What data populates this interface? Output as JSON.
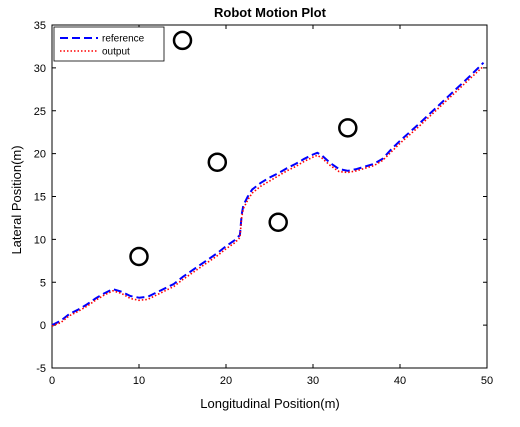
{
  "chart_data": {
    "type": "line",
    "title": "Robot Motion Plot",
    "xlabel": "Longitudinal Position(m)",
    "ylabel": "Lateral Position(m)",
    "xlim": [
      0,
      50
    ],
    "ylim": [
      -5,
      35
    ],
    "xticks": [
      0,
      10,
      20,
      30,
      40,
      50
    ],
    "yticks": [
      -5,
      0,
      5,
      10,
      15,
      20,
      25,
      30,
      35
    ],
    "grid": false,
    "legend_position": "top-left",
    "series": [
      {
        "name": "reference",
        "color": "#0000ff",
        "style": "dashed",
        "x": [
          0,
          1,
          2,
          3,
          4,
          5,
          6,
          7,
          8,
          9,
          10,
          11,
          12,
          13,
          14,
          15,
          16,
          17,
          18,
          19,
          20,
          21,
          21.6,
          21.8,
          22,
          22.5,
          23,
          24,
          25,
          26,
          27,
          28,
          29,
          30,
          30.5,
          31,
          32,
          33,
          34,
          35,
          36,
          37,
          38,
          39,
          40,
          42,
          44,
          46,
          48,
          49.6
        ],
        "y": [
          0,
          0.5,
          1.3,
          1.8,
          2.4,
          3.1,
          3.7,
          4.2,
          3.9,
          3.4,
          3.2,
          3.3,
          3.8,
          4.3,
          4.8,
          5.6,
          6.3,
          7.0,
          7.7,
          8.4,
          9.2,
          9.9,
          10.5,
          12.9,
          14.0,
          15.0,
          15.8,
          16.6,
          17.2,
          17.7,
          18.3,
          18.8,
          19.4,
          19.9,
          20.1,
          19.8,
          18.9,
          18.2,
          18.0,
          18.2,
          18.5,
          18.8,
          19.4,
          20.5,
          21.5,
          23.3,
          25.2,
          27.1,
          29.0,
          30.6
        ]
      },
      {
        "name": "output",
        "color": "#ff0000",
        "style": "dotted",
        "x": [
          0,
          1,
          2,
          3,
          4,
          5,
          6,
          7,
          8,
          9,
          10,
          11,
          12,
          13,
          14,
          15,
          16,
          17,
          18,
          19,
          20,
          21,
          21.6,
          21.8,
          22,
          22.5,
          23,
          24,
          25,
          26,
          27,
          28,
          29,
          30,
          30.5,
          31,
          32,
          33,
          34,
          35,
          36,
          37,
          38,
          39,
          40,
          42,
          44,
          46,
          48,
          49.6
        ],
        "y": [
          -0.1,
          0.3,
          1.1,
          1.6,
          2.2,
          2.9,
          3.5,
          4.0,
          3.7,
          3.1,
          2.9,
          3.0,
          3.5,
          4.0,
          4.5,
          5.3,
          6.0,
          6.7,
          7.4,
          8.1,
          8.9,
          9.6,
          10.2,
          12.6,
          13.6,
          14.6,
          15.4,
          16.2,
          16.8,
          17.4,
          18.0,
          18.5,
          19.1,
          19.6,
          19.8,
          19.5,
          18.6,
          17.9,
          17.8,
          18.0,
          18.3,
          18.6,
          19.2,
          20.2,
          21.2,
          23.0,
          24.9,
          26.8,
          28.7,
          30.2
        ]
      }
    ],
    "obstacles": {
      "marker": "circle",
      "color": "#000000",
      "x": [
        10,
        15,
        19,
        26,
        34
      ],
      "y": [
        8,
        33.2,
        19,
        12,
        23
      ]
    }
  }
}
